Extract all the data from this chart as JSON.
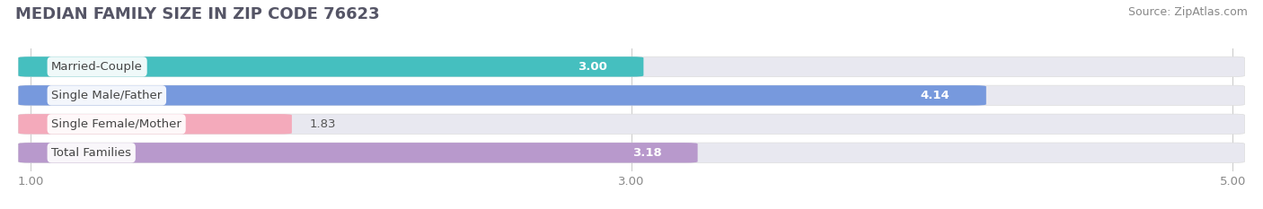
{
  "title": "MEDIAN FAMILY SIZE IN ZIP CODE 76623",
  "source": "Source: ZipAtlas.com",
  "categories": [
    "Married-Couple",
    "Single Male/Father",
    "Single Female/Mother",
    "Total Families"
  ],
  "values": [
    3.0,
    4.14,
    1.83,
    3.18
  ],
  "bar_colors": [
    "#45BFBF",
    "#7799DD",
    "#F4AABB",
    "#B899CC"
  ],
  "value_inside": [
    true,
    true,
    false,
    true
  ],
  "xlim_min": 1.0,
  "xlim_max": 5.0,
  "xticks": [
    1.0,
    3.0,
    5.0
  ],
  "xtick_labels": [
    "1.00",
    "3.00",
    "5.00"
  ],
  "bar_height": 0.62,
  "background_color": "#ffffff",
  "bar_bg_color": "#e8e8f0",
  "title_fontsize": 13,
  "source_fontsize": 9,
  "label_fontsize": 9.5,
  "value_fontsize": 9.5,
  "tick_fontsize": 9.5,
  "grid_color": "#cccccc",
  "title_color": "#555566",
  "source_color": "#888888",
  "tick_color": "#888888",
  "value_color_inside": "#ffffff",
  "value_color_outside": "#555555",
  "label_text_color": "#444444"
}
